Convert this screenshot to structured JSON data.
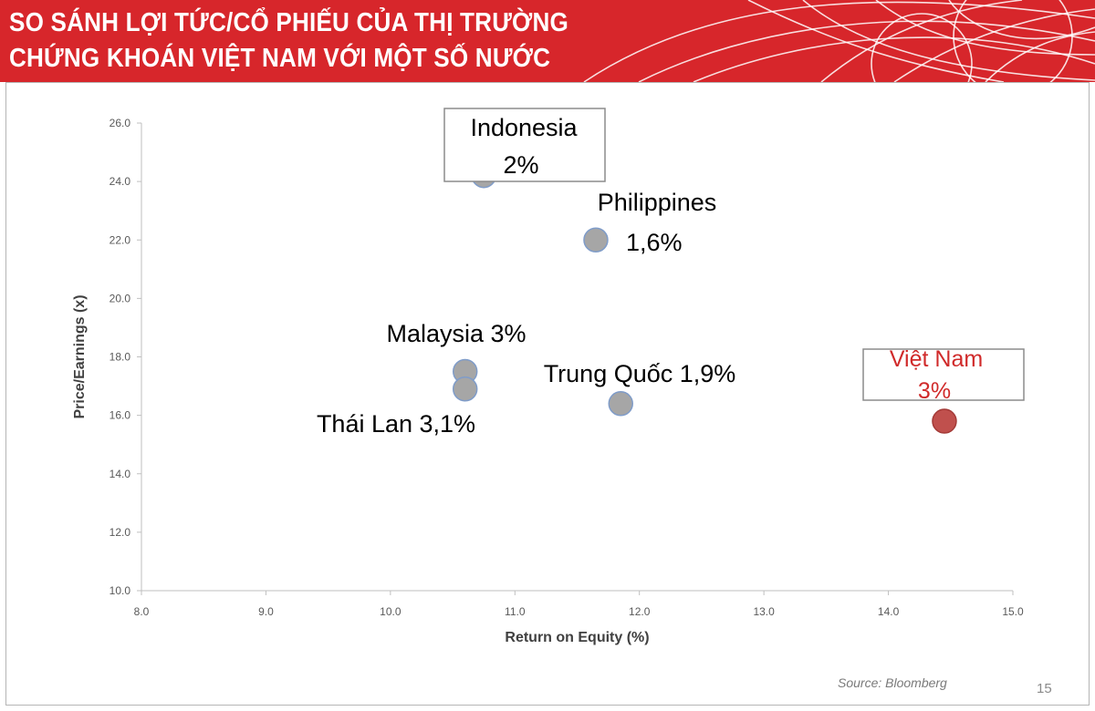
{
  "banner": {
    "title_line1": "SO SÁNH LỢI TỨC/CỔ PHIẾU CỦA THỊ TRƯỜNG",
    "title_line2": "CHỨNG KHOÁN VIỆT NAM VỚI MỘT SỐ NƯỚC",
    "color": "#d7262b"
  },
  "chart_data": {
    "type": "scatter",
    "title": "",
    "xlabel": "Return on Equity (%)",
    "ylabel": "Price/Earnings (x)",
    "xlim": [
      8.0,
      15.0
    ],
    "ylim": [
      10.0,
      26.0
    ],
    "x_ticks": [
      "8.0",
      "9.0",
      "10.0",
      "11.0",
      "12.0",
      "13.0",
      "14.0",
      "15.0"
    ],
    "y_ticks": [
      "10.0",
      "12.0",
      "14.0",
      "16.0",
      "18.0",
      "20.0",
      "22.0",
      "24.0",
      "26.0"
    ],
    "grid": false,
    "points": [
      {
        "label": "Indonesia",
        "value_label": "2%",
        "x": 10.75,
        "y": 24.2,
        "color": "#a6a6a6"
      },
      {
        "label": "Philippines",
        "value_label": "1,6%",
        "x": 11.65,
        "y": 22.0,
        "color": "#a6a6a6"
      },
      {
        "label": "Malaysia 3%",
        "value_label": "",
        "x": 10.6,
        "y": 17.5,
        "color": "#a6a6a6"
      },
      {
        "label": "Thái Lan 3,1%",
        "value_label": "",
        "x": 10.6,
        "y": 16.9,
        "color": "#a6a6a6"
      },
      {
        "label": "Trung Quốc 1,9%",
        "value_label": "",
        "x": 11.85,
        "y": 16.4,
        "color": "#a6a6a6"
      },
      {
        "label": "Việt Nam",
        "value_label": "3%",
        "x": 14.45,
        "y": 15.8,
        "color": "#c0504d"
      }
    ]
  },
  "source": "Source: Bloomberg",
  "page_number": "15"
}
